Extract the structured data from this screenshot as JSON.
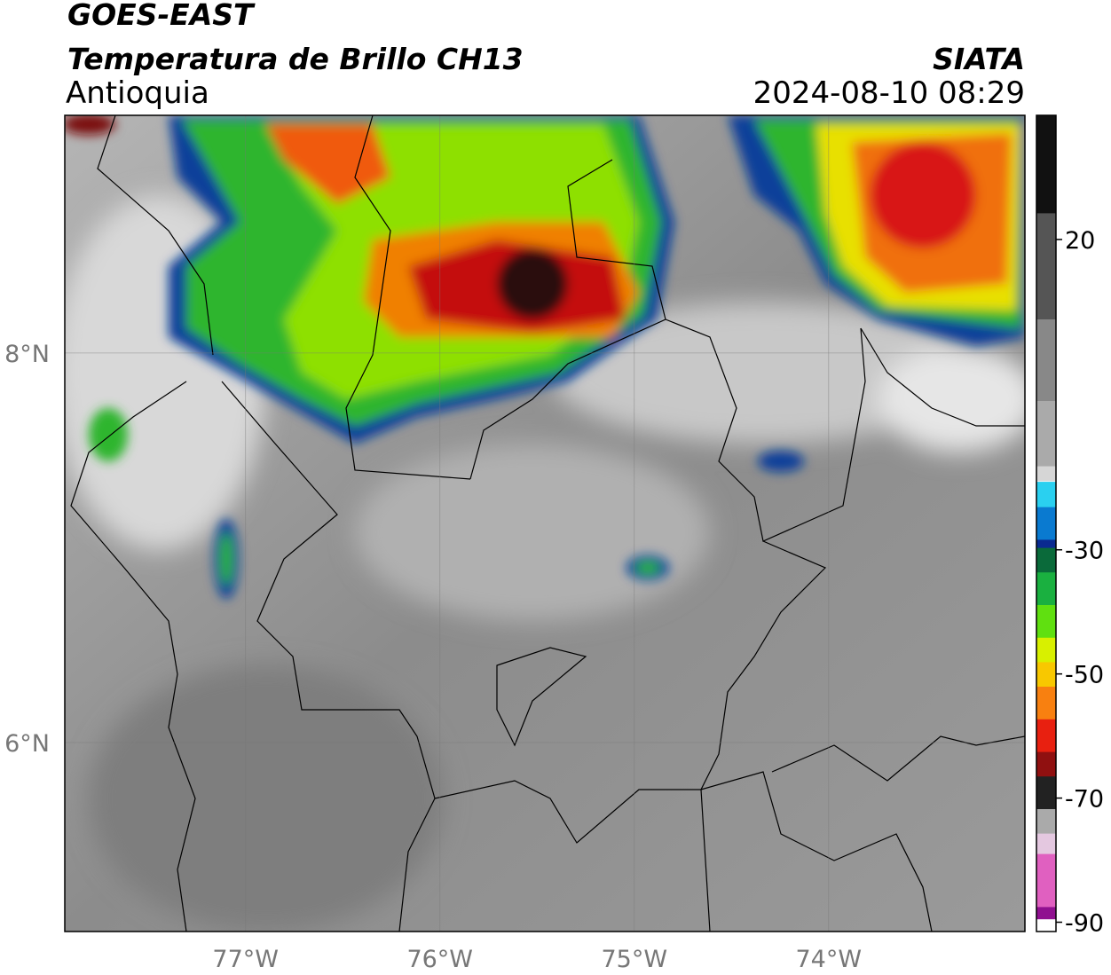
{
  "header": {
    "title": "GOES-EAST",
    "subtitle": "Temperatura de Brillo CH13",
    "region": "Antioquia",
    "source": "SIATA",
    "datetime": "2024-08-10 08:29"
  },
  "map": {
    "lonlim": [
      -77.93,
      -72.99
    ],
    "latlim": [
      5.03,
      9.22
    ],
    "lonticks": [
      {
        "value": -77,
        "label": "77°W"
      },
      {
        "value": -76,
        "label": "76°W"
      },
      {
        "value": -75,
        "label": "75°W"
      },
      {
        "value": -74,
        "label": "74°W"
      }
    ],
    "latticks": [
      {
        "value": 8,
        "label": "8°N"
      },
      {
        "value": 6,
        "label": "6°N"
      }
    ],
    "grid": true
  },
  "colorbar": {
    "lim": [
      -91.5,
      40
    ],
    "ticks": [
      20,
      -30,
      -50,
      -70,
      -90
    ]
  }
}
